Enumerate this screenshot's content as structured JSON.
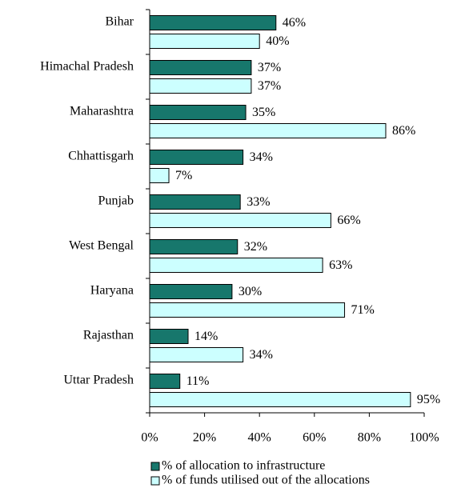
{
  "chart_data": {
    "type": "hbar",
    "categories": [
      "Bihar",
      "Himachal Pradesh",
      "Maharashtra",
      "Chhattisgarh",
      "Punjab",
      "West Bengal",
      "Haryana",
      "Rajasthan",
      "Uttar Pradesh"
    ],
    "series": [
      {
        "name": "% of allocation to infrastructure",
        "color": "#17776c",
        "values": [
          46,
          37,
          35,
          34,
          33,
          32,
          30,
          14,
          11
        ],
        "value_labels": [
          "46%",
          "37%",
          "35%",
          "34%",
          "33%",
          "32%",
          "30%",
          "14%",
          "11%"
        ]
      },
      {
        "name": "% of funds utilised out of the allocations",
        "color": "#ccffff",
        "values": [
          40,
          37,
          86,
          7,
          66,
          63,
          71,
          34,
          95
        ],
        "value_labels": [
          "40%",
          "37%",
          "86%",
          "7%",
          "66%",
          "63%",
          "71%",
          "34%",
          "95%"
        ]
      }
    ],
    "xlim": [
      0,
      100
    ],
    "xticks": [
      {
        "value": 0,
        "label": "0%"
      },
      {
        "value": 20,
        "label": "20%"
      },
      {
        "value": 40,
        "label": "40%"
      },
      {
        "value": 60,
        "label": "60%"
      },
      {
        "value": 80,
        "label": "80%"
      },
      {
        "value": 100,
        "label": "100%"
      }
    ],
    "legend": "bottom"
  }
}
